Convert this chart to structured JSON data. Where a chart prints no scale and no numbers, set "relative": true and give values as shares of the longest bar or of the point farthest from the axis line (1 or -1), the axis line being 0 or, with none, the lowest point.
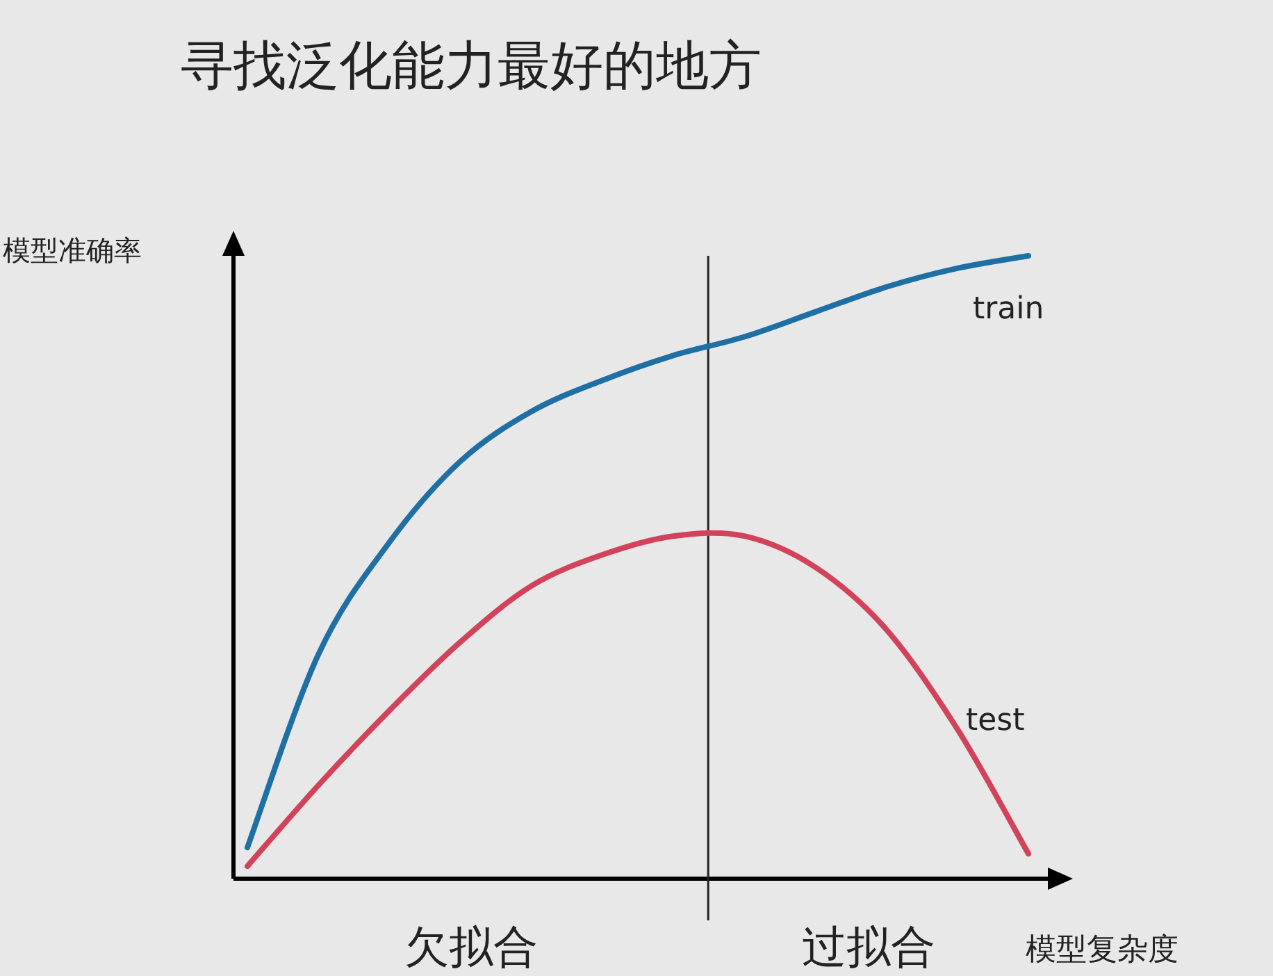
{
  "chart_data": {
    "type": "line",
    "relative": true,
    "title": "寻找泛化能力最好的地方",
    "xlabel": "模型复杂度",
    "ylabel": "模型准确率",
    "categories": [
      null,
      null,
      null,
      null,
      null,
      null,
      null,
      null,
      null,
      null,
      null,
      null
    ],
    "series": [
      {
        "name": "train",
        "color": "#1f6fa5",
        "values": [
          0.05,
          0.36,
          0.54,
          0.67,
          0.75,
          0.8,
          0.84,
          0.87,
          0.91,
          0.95,
          0.98,
          1.0
        ]
      },
      {
        "name": "test",
        "color": "#d2435b",
        "values": [
          0.02,
          0.15,
          0.27,
          0.38,
          0.47,
          0.52,
          0.55,
          0.55,
          0.5,
          0.4,
          0.24,
          0.04
        ]
      }
    ],
    "annotations": [
      "欠拟合",
      "过拟合"
    ]
  }
}
